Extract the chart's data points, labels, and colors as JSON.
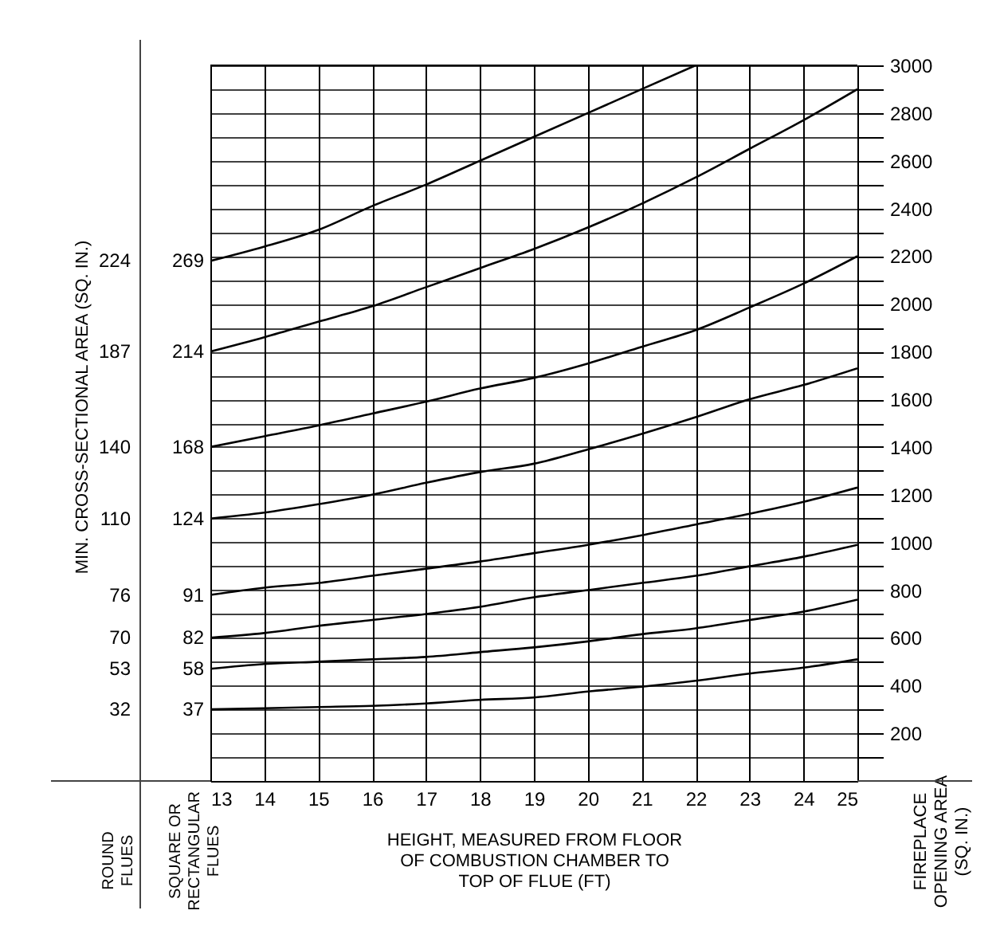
{
  "chart_data": {
    "type": "line",
    "xlabel": "HEIGHT, MEASURED FROM FLOOR\nOF COMBUSTION CHAMBER TO\nTOP OF FLUE (FT)",
    "ylabel": "FIREPLACE\nOPENING AREA\n(SQ. IN.)",
    "x": [
      13,
      14,
      15,
      16,
      17,
      18,
      19,
      20,
      21,
      22,
      23,
      24,
      25
    ],
    "series": [
      {
        "name": "269",
        "color": "#000000",
        "x": [
          13,
          14,
          15,
          16,
          17,
          18,
          19,
          20,
          21,
          22
        ],
        "values": [
          2180,
          2240,
          2310,
          2410,
          2500,
          2600,
          2700,
          2800,
          2900,
          3000
        ]
      },
      {
        "name": "214",
        "color": "#000000",
        "values": [
          1800,
          1860,
          1925,
          1990,
          2070,
          2150,
          2230,
          2320,
          2420,
          2530,
          2650,
          2770,
          2900
        ]
      },
      {
        "name": "168",
        "color": "#000000",
        "values": [
          1400,
          1445,
          1490,
          1540,
          1590,
          1645,
          1690,
          1750,
          1820,
          1890,
          1985,
          2085,
          2200
        ]
      },
      {
        "name": "124",
        "color": "#000000",
        "values": [
          1100,
          1125,
          1160,
          1200,
          1250,
          1295,
          1330,
          1390,
          1455,
          1525,
          1600,
          1660,
          1730
        ]
      },
      {
        "name": "91",
        "color": "#000000",
        "values": [
          780,
          810,
          830,
          860,
          890,
          920,
          955,
          990,
          1030,
          1075,
          1120,
          1170,
          1230
        ]
      },
      {
        "name": "82",
        "color": "#000000",
        "values": [
          600,
          620,
          650,
          675,
          700,
          730,
          770,
          800,
          830,
          860,
          900,
          940,
          990
        ]
      },
      {
        "name": "58",
        "color": "#000000",
        "values": [
          470,
          490,
          500,
          510,
          520,
          540,
          560,
          585,
          615,
          640,
          675,
          710,
          760
        ]
      },
      {
        "name": "37",
        "color": "#000000",
        "values": [
          300,
          305,
          310,
          315,
          325,
          340,
          350,
          375,
          395,
          420,
          450,
          475,
          510
        ]
      }
    ],
    "xlim": [
      13,
      25
    ],
    "xticks": [
      13,
      14,
      15,
      16,
      17,
      18,
      19,
      20,
      21,
      22,
      23,
      24,
      25
    ],
    "ylim": [
      0,
      3000
    ],
    "yticks": [
      {
        "value": 100,
        "label": null
      },
      200,
      {
        "value": 300,
        "label": null
      },
      400,
      {
        "value": 500,
        "label": null
      },
      600,
      {
        "value": 700,
        "label": null
      },
      800,
      {
        "value": 900,
        "label": null
      },
      1000,
      {
        "value": 1100,
        "label": null
      },
      1200,
      {
        "value": 1300,
        "label": null
      },
      1400,
      {
        "value": 1500,
        "label": null
      },
      1600,
      {
        "value": 1700,
        "label": null
      },
      1800,
      {
        "value": 1900,
        "label": null
      },
      2000,
      {
        "value": 2100,
        "label": null
      },
      2200,
      {
        "value": 2300,
        "label": null
      },
      2400,
      {
        "value": 2500,
        "label": null
      },
      2600,
      {
        "value": 2700,
        "label": null
      },
      2800,
      {
        "value": 2900,
        "label": null
      },
      3000
    ],
    "grid": true,
    "legend": false,
    "marker": "none",
    "line_style": "solid",
    "annotations": [
      "MIN. CROSS-SECTIONAL AREA (SQ. IN.)",
      "ROUND\nFLUES",
      "SQUARE OR\nRECTANGULAR\nFLUES",
      "224",
      "187",
      "140",
      "110",
      "76",
      "70",
      "53",
      "32"
    ]
  }
}
